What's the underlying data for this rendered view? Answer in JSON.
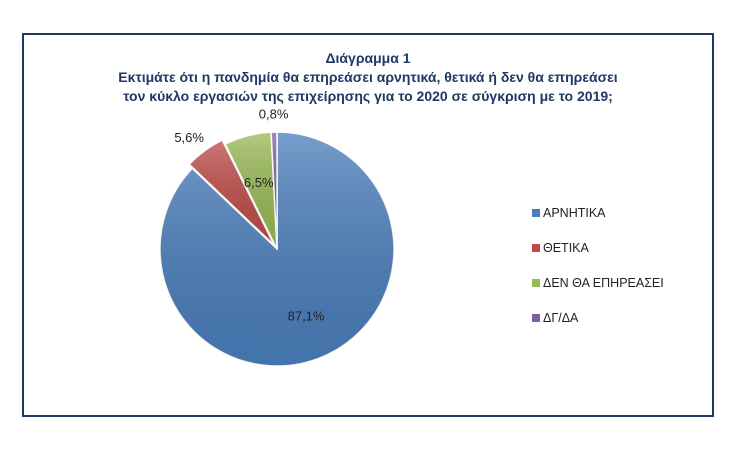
{
  "figure": {
    "title_line1": "Διάγραμμα 1",
    "title_line2": "Εκτιμάτε ότι η πανδημία θα επηρεάσει αρνητικά, θετικά ή δεν θα επηρεάσει",
    "title_line3": "τον κύκλο εργασιών της επιχείρησης για το 2020 σε σύγκριση με το 2019;"
  },
  "chart_data": {
    "type": "pie",
    "title": "Διάγραμμα 1 — Εκτιμάτε ότι η πανδημία θα επηρεάσει αρνητικά, θετικά ή δεν θα επηρεάσει τον κύκλο εργασιών της επιχείρησης για το 2020 σε σύγκριση με το 2019;",
    "categories": [
      "ΑΡΝΗΤΙΚΑ",
      "ΘΕΤΙΚΑ",
      "ΔΕΝ ΘΑ ΕΠΗΡΕΑΣΕΙ",
      "ΔΓ/ΔΑ"
    ],
    "values": [
      87.1,
      5.6,
      6.5,
      0.8
    ],
    "labels": [
      "87,1%",
      "5,6%",
      "6,5%",
      "0,8%"
    ],
    "colors": [
      "#4a7ebb",
      "#be4b48",
      "#98b954",
      "#7d60a0"
    ],
    "legend_position": "right"
  }
}
